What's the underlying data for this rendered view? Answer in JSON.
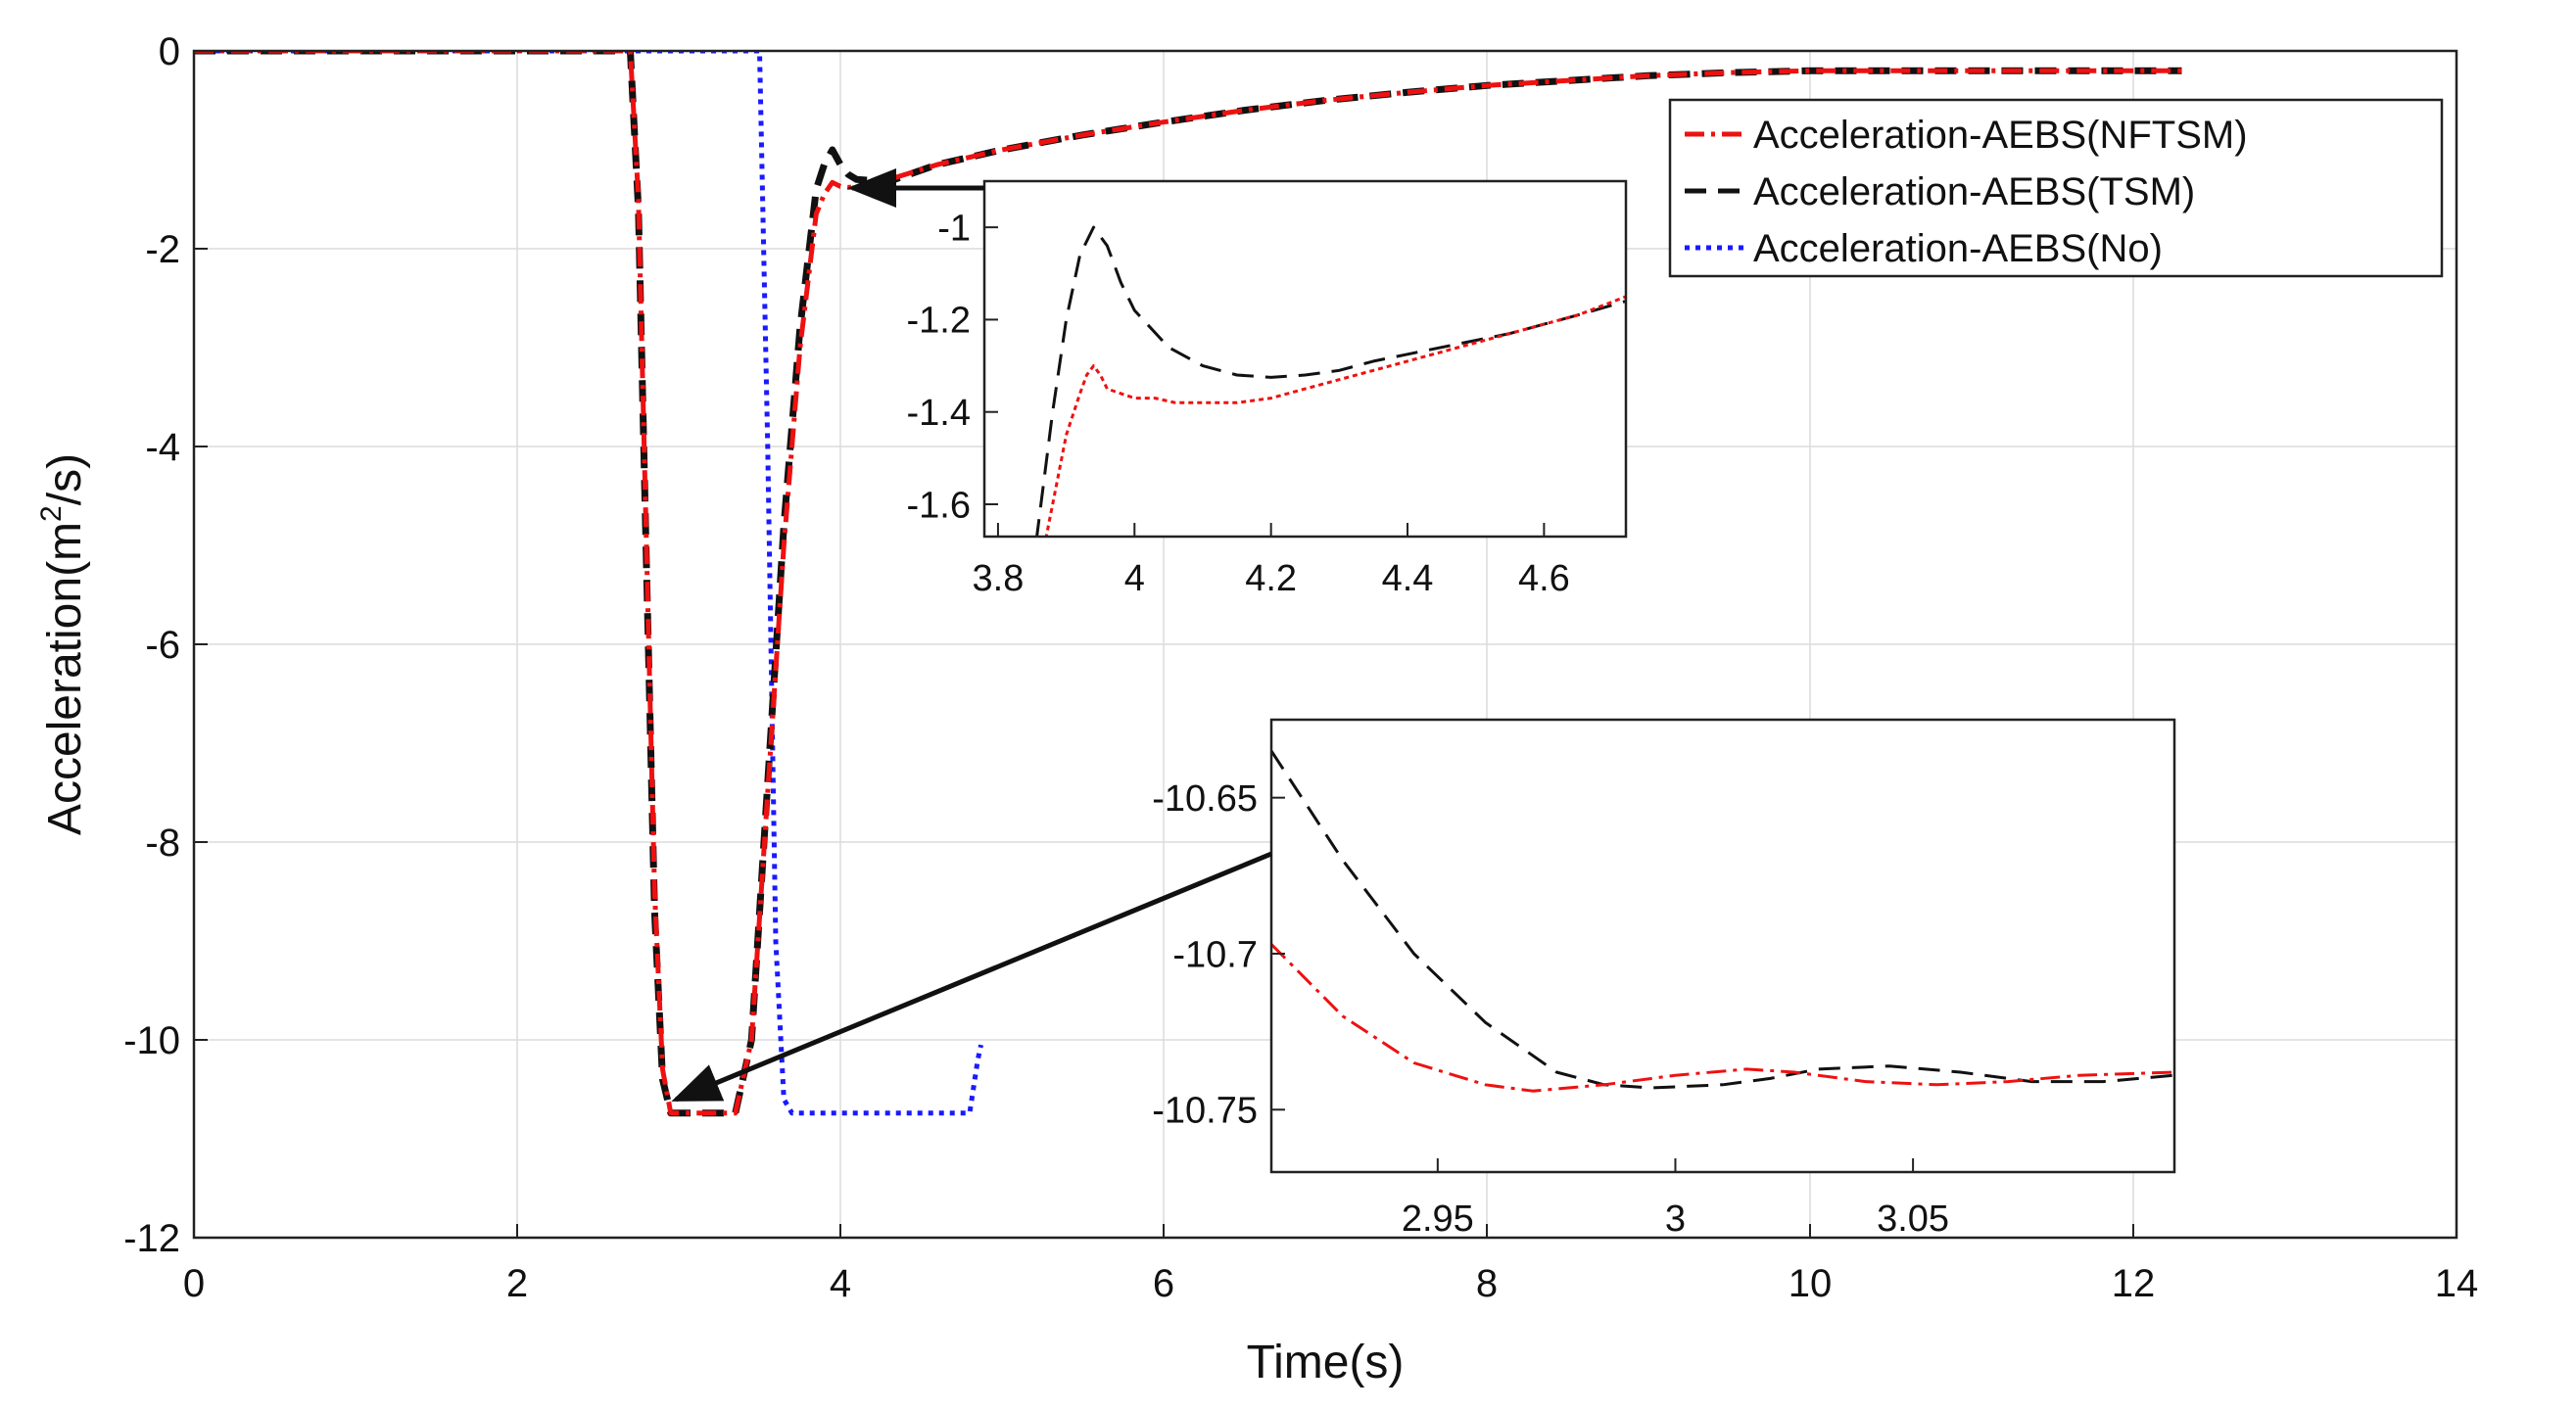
{
  "colors": {
    "nftsm": "#ee1111",
    "tsm": "#111111",
    "no": "#1a1aff",
    "grid": "#dcdcdc",
    "axis": "#222222"
  },
  "chart_data": [
    {
      "id": "main",
      "type": "line",
      "xlabel": "Time(s)",
      "ylabel_prefix": "Acceleration(m",
      "ylabel_sup": "2",
      "ylabel_suffix": "/s)",
      "xlim": [
        0,
        14
      ],
      "ylim": [
        -12,
        0
      ],
      "xticks": [
        0,
        2,
        4,
        6,
        8,
        10,
        12,
        14
      ],
      "xtick_labels": [
        "0",
        "2",
        "4",
        "6",
        "8",
        "10",
        "12",
        "14"
      ],
      "yticks": [
        0,
        -2,
        -4,
        -6,
        -8,
        -10,
        -12
      ],
      "ytick_labels": [
        "0",
        "-2",
        "-4",
        "-6",
        "-8",
        "-10",
        "-12"
      ],
      "grid": true,
      "legend_position": "top-right",
      "series": [
        {
          "name": "Acceleration-AEBS(NFTSM)",
          "style": "dashdot",
          "color": "#ee1111",
          "x": [
            0,
            2.7,
            2.75,
            2.8,
            2.85,
            2.9,
            2.95,
            3.0,
            3.2,
            3.35,
            3.45,
            3.55,
            3.65,
            3.75,
            3.85,
            3.9,
            3.95,
            4.0,
            4.05,
            4.1,
            4.3,
            4.6,
            5.0,
            5.5,
            6.0,
            6.5,
            7.0,
            7.5,
            8.0,
            8.5,
            9.0,
            9.5,
            10.0,
            11.0,
            12.0,
            12.3
          ],
          "y": [
            0,
            0,
            -1.5,
            -5.0,
            -8.5,
            -10.3,
            -10.74,
            -10.74,
            -10.74,
            -10.74,
            -10.0,
            -7.5,
            -5.0,
            -3.0,
            -1.65,
            -1.45,
            -1.33,
            -1.37,
            -1.38,
            -1.37,
            -1.3,
            -1.15,
            -1.0,
            -0.85,
            -0.72,
            -0.6,
            -0.5,
            -0.42,
            -0.35,
            -0.3,
            -0.25,
            -0.22,
            -0.2,
            -0.2,
            -0.2,
            -0.2
          ]
        },
        {
          "name": "Acceleration-AEBS(TSM)",
          "style": "dashed",
          "color": "#111111",
          "x": [
            0,
            2.7,
            2.75,
            2.8,
            2.85,
            2.9,
            2.95,
            3.0,
            3.2,
            3.35,
            3.45,
            3.55,
            3.65,
            3.75,
            3.85,
            3.9,
            3.95,
            4.0,
            4.05,
            4.1,
            4.3,
            4.6,
            5.0,
            5.5,
            6.0,
            6.5,
            7.0,
            7.5,
            8.0,
            8.5,
            9.0,
            9.5,
            10.0,
            11.0,
            12.0,
            12.3
          ],
          "y": [
            0,
            0,
            -1.6,
            -5.2,
            -8.7,
            -10.4,
            -10.74,
            -10.74,
            -10.74,
            -10.74,
            -10.0,
            -7.4,
            -4.8,
            -2.8,
            -1.4,
            -1.15,
            -1.0,
            -1.15,
            -1.25,
            -1.3,
            -1.32,
            -1.15,
            -1.0,
            -0.85,
            -0.72,
            -0.6,
            -0.5,
            -0.42,
            -0.35,
            -0.3,
            -0.25,
            -0.22,
            -0.2,
            -0.2,
            -0.2,
            -0.2
          ]
        },
        {
          "name": "Acceleration-AEBS(No)",
          "style": "dotted",
          "color": "#1a1aff",
          "x": [
            0,
            3.5,
            3.55,
            3.6,
            3.65,
            3.7,
            3.75,
            4.8,
            4.85,
            4.87
          ],
          "y": [
            0,
            0,
            -4.0,
            -9.0,
            -10.6,
            -10.74,
            -10.74,
            -10.74,
            -10.2,
            -10.05
          ]
        }
      ]
    },
    {
      "id": "inset-upper",
      "type": "line",
      "xlim": [
        3.78,
        4.72
      ],
      "ylim": [
        -1.67,
        -0.9
      ],
      "xticks": [
        3.8,
        4.0,
        4.2,
        4.4,
        4.6
      ],
      "xtick_labels": [
        "3.8",
        "4",
        "4.2",
        "4.4",
        "4.6"
      ],
      "yticks": [
        -1.0,
        -1.2,
        -1.4,
        -1.6
      ],
      "ytick_labels": [
        "-1",
        "-1.2",
        "-1.4",
        "-1.6"
      ],
      "series": [
        {
          "name": "TSM",
          "style": "dashed",
          "color": "#111111",
          "x": [
            3.85,
            3.88,
            3.9,
            3.92,
            3.94,
            3.96,
            3.98,
            4.0,
            4.05,
            4.1,
            4.15,
            4.2,
            4.25,
            4.3,
            4.35,
            4.4,
            4.45,
            4.5,
            4.55,
            4.6,
            4.65,
            4.72
          ],
          "y": [
            -1.75,
            -1.4,
            -1.2,
            -1.06,
            -1.0,
            -1.04,
            -1.12,
            -1.18,
            -1.26,
            -1.3,
            -1.32,
            -1.325,
            -1.32,
            -1.31,
            -1.29,
            -1.275,
            -1.26,
            -1.245,
            -1.23,
            -1.21,
            -1.19,
            -1.16
          ]
        },
        {
          "name": "NFTSM",
          "style": "dotted-ripple",
          "color": "#ee1111",
          "x": [
            3.86,
            3.88,
            3.9,
            3.92,
            3.93,
            3.94,
            3.95,
            3.96,
            3.98,
            4.0,
            4.03,
            4.06,
            4.1,
            4.15,
            4.2,
            4.25,
            4.3,
            4.35,
            4.4,
            4.45,
            4.5,
            4.55,
            4.6,
            4.65,
            4.72
          ],
          "y": [
            -1.75,
            -1.6,
            -1.45,
            -1.36,
            -1.32,
            -1.3,
            -1.32,
            -1.35,
            -1.36,
            -1.37,
            -1.37,
            -1.38,
            -1.38,
            -1.38,
            -1.37,
            -1.35,
            -1.33,
            -1.31,
            -1.29,
            -1.27,
            -1.25,
            -1.23,
            -1.21,
            -1.19,
            -1.15
          ]
        }
      ]
    },
    {
      "id": "inset-lower",
      "type": "line",
      "xlim": [
        2.915,
        3.105
      ],
      "ylim": [
        -10.77,
        -10.625
      ],
      "xticks": [
        2.95,
        3.0,
        3.05
      ],
      "xtick_labels": [
        "2.95",
        "3",
        "3.05"
      ],
      "yticks": [
        -10.65,
        -10.7,
        -10.75
      ],
      "ytick_labels": [
        "-10.65",
        "-10.7",
        "-10.75"
      ],
      "series": [
        {
          "name": "TSM",
          "style": "dashed",
          "color": "#111111",
          "x": [
            2.915,
            2.93,
            2.945,
            2.96,
            2.975,
            2.985,
            2.995,
            3.01,
            3.02,
            3.03,
            3.045,
            3.06,
            3.075,
            3.09,
            3.105
          ],
          "y": [
            -10.635,
            -10.67,
            -10.7,
            -10.722,
            -10.738,
            -10.742,
            -10.743,
            -10.742,
            -10.74,
            -10.737,
            -10.736,
            -10.738,
            -10.741,
            -10.741,
            -10.739
          ]
        },
        {
          "name": "NFTSM",
          "style": "dashdot",
          "color": "#ee1111",
          "x": [
            2.915,
            2.93,
            2.945,
            2.96,
            2.97,
            2.985,
            3.0,
            3.015,
            3.025,
            3.04,
            3.055,
            3.07,
            3.085,
            3.105
          ],
          "y": [
            -10.697,
            -10.72,
            -10.735,
            -10.742,
            -10.744,
            -10.742,
            -10.739,
            -10.737,
            -10.738,
            -10.741,
            -10.742,
            -10.741,
            -10.739,
            -10.738
          ]
        }
      ]
    }
  ]
}
